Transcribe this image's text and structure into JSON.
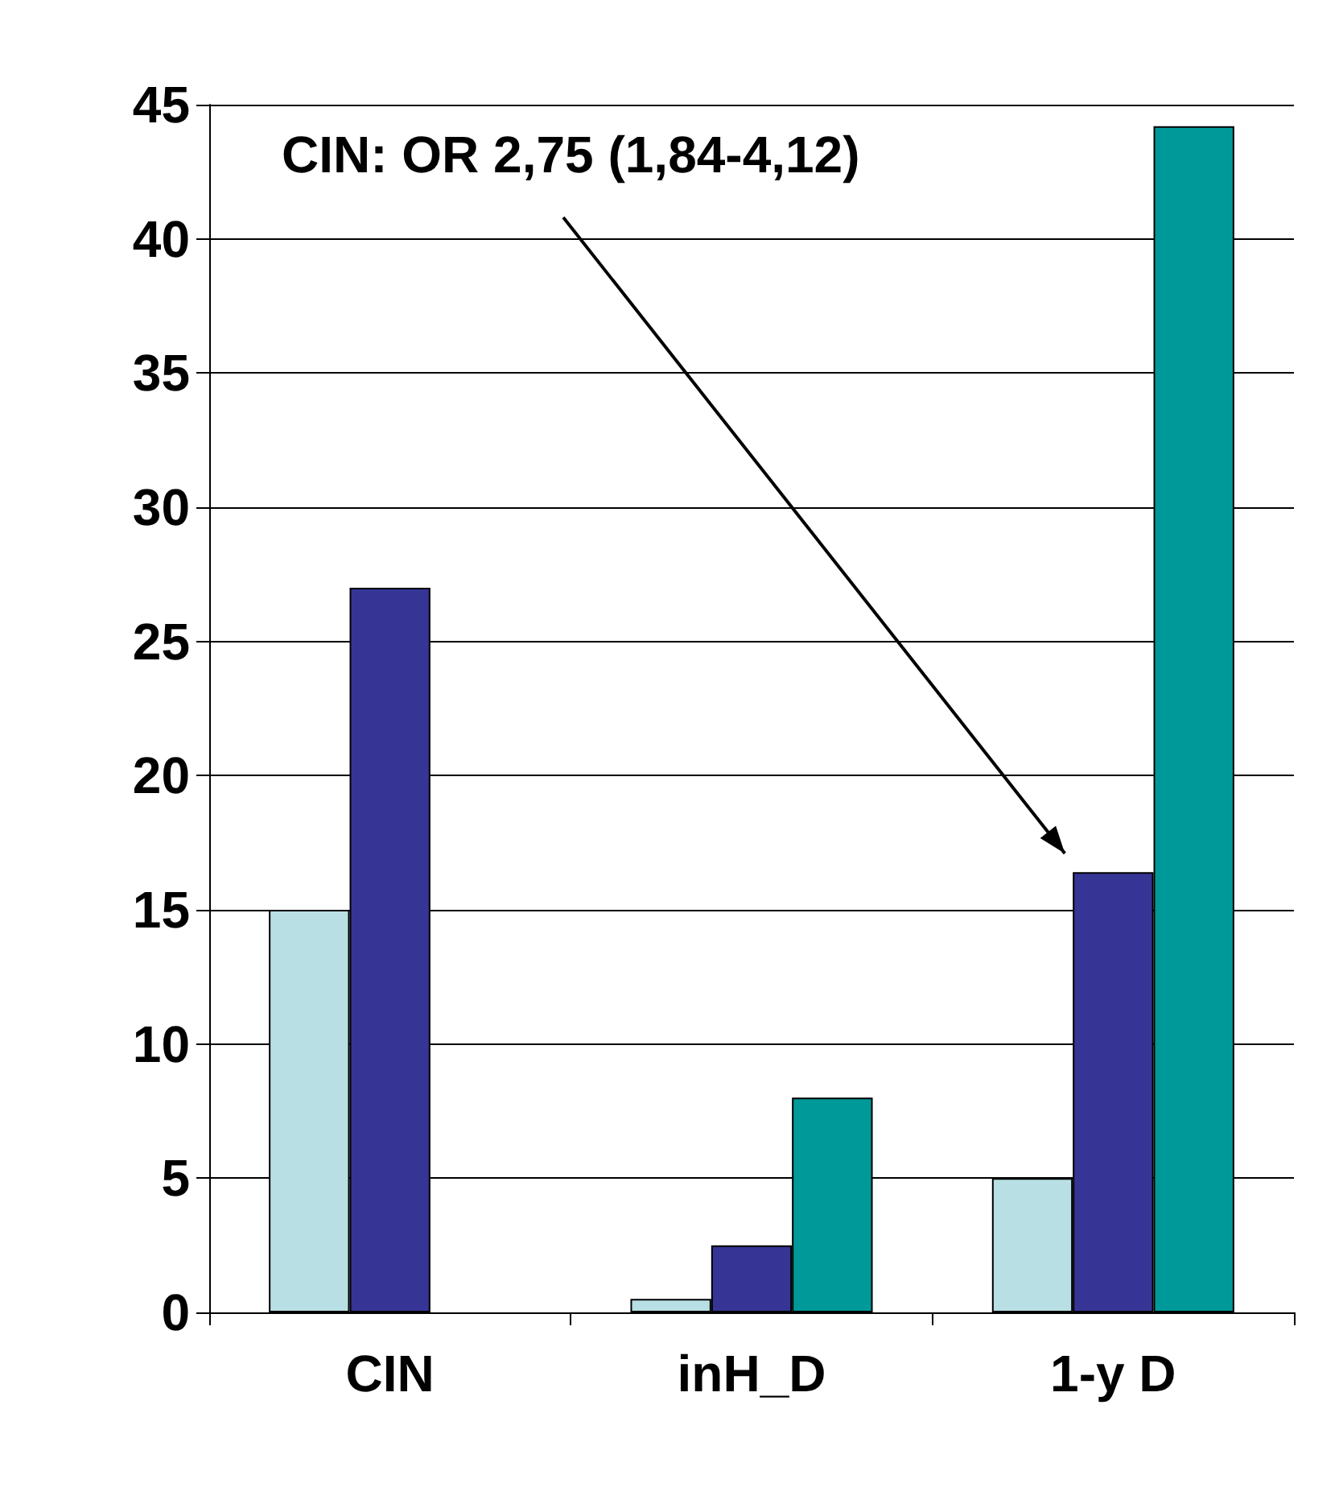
{
  "chart_data": {
    "type": "bar",
    "categories": [
      "CIN",
      "inH_D",
      "1-y D"
    ],
    "series": [
      {
        "color": "#b8e0e4",
        "values": [
          15,
          0.5,
          5
        ]
      },
      {
        "color": "#363596",
        "values": [
          27,
          2.5,
          16.4
        ]
      },
      {
        "color": "#009999",
        "values": [
          null,
          8,
          44.2
        ]
      }
    ],
    "ylim": [
      0,
      45
    ],
    "yticks": [
      0,
      5,
      10,
      15,
      20,
      25,
      30,
      35,
      40,
      45
    ],
    "grid": "y",
    "annotations": [
      "CIN: OR 2,75 (1,84-4,12)"
    ]
  }
}
